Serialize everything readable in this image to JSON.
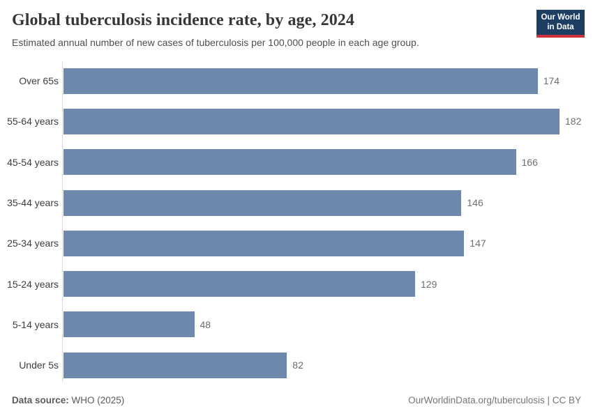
{
  "header": {
    "title": "Global tuberculosis incidence rate, by age, 2024",
    "subtitle": "Estimated annual number of new cases of tuberculosis per 100,000 people in each age group.",
    "logo": {
      "line1": "Our World",
      "line2": "in Data"
    }
  },
  "chart_data": {
    "type": "bar",
    "orientation": "horizontal",
    "title": "Global tuberculosis incidence rate, by age, 2024",
    "subtitle": "Estimated annual number of new cases of tuberculosis per 100,000 people in each age group.",
    "categories": [
      "Over 65s",
      "55-64 years",
      "45-54 years",
      "35-44 years",
      "25-34 years",
      "15-24 years",
      "5-14 years",
      "Under 5s"
    ],
    "values": [
      174,
      182,
      166,
      146,
      147,
      129,
      48,
      82
    ],
    "xlabel": "",
    "ylabel": "",
    "xlim": [
      0,
      182
    ],
    "grid": false,
    "legend": "none",
    "value_labels_shown": true,
    "bar_color": "#6d87ad"
  },
  "footer": {
    "source_label": "Data source:",
    "source_value": " WHO (2025)",
    "link": "OurWorldinData.org/tuberculosis | CC BY"
  },
  "colors": {
    "bar": "#6d87ad",
    "axis_line": "#dcdcdc",
    "title_text": "#383636",
    "subtitle_text": "#4e4e4e",
    "value_text": "#6e6e6e",
    "logo_background": "#1d3d63",
    "logo_accent": "#d0313d"
  }
}
